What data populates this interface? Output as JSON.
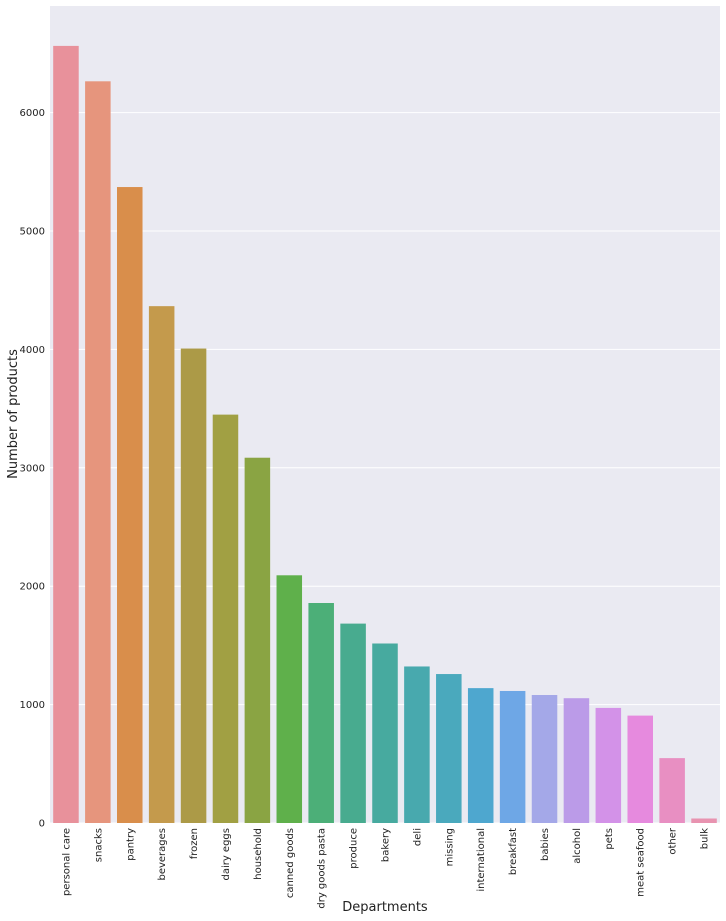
{
  "chart_data": {
    "type": "bar",
    "title": "",
    "xlabel": "Departments",
    "ylabel": "Number of products",
    "ylim": [
      0,
      6900
    ],
    "yticks": [
      0,
      1000,
      2000,
      3000,
      4000,
      5000,
      6000
    ],
    "grid": true,
    "legend": "none",
    "categories": [
      "personal care",
      "snacks",
      "pantry",
      "beverages",
      "frozen",
      "dairy eggs",
      "household",
      "canned goods",
      "dry goods pasta",
      "produce",
      "bakery",
      "deli",
      "missing",
      "international",
      "breakfast",
      "babies",
      "alcohol",
      "pets",
      "meat seafood",
      "other",
      "bulk"
    ],
    "values": [
      6563,
      6264,
      5371,
      4365,
      4007,
      3449,
      3085,
      2092,
      1858,
      1684,
      1516,
      1322,
      1258,
      1139,
      1115,
      1081,
      1054,
      972,
      907,
      548,
      38
    ],
    "colors": [
      "#e8919b",
      "#e6957d",
      "#d98e4b",
      "#c49a4c",
      "#ac9a47",
      "#a1a043",
      "#8aa443",
      "#5fb04b",
      "#4caf78",
      "#48ab8f",
      "#47aa9f",
      "#48a9ae",
      "#4aa9bd",
      "#4ea7cf",
      "#6ea7e6",
      "#a4a8e8",
      "#bb9be8",
      "#d392e8",
      "#e68ade",
      "#e88fc2",
      "#e893b0"
    ]
  }
}
